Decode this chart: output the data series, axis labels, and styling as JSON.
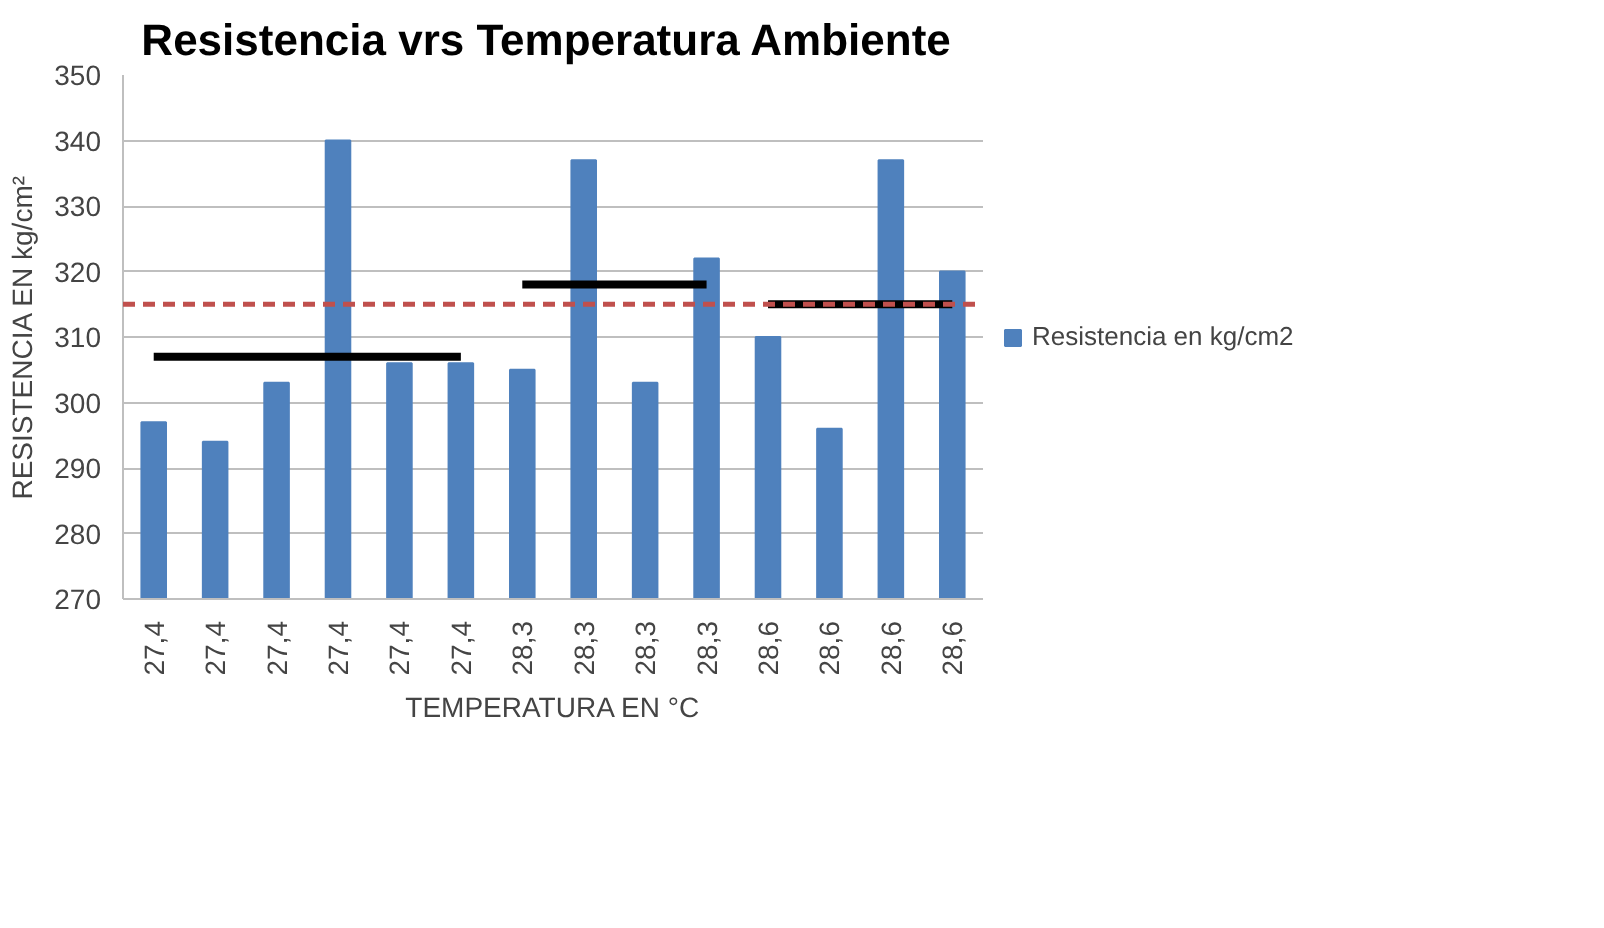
{
  "chart_data": {
    "type": "bar",
    "title": "Resistencia  vrs Temperatura Ambiente",
    "xlabel": "TEMPERATURA EN °C",
    "ylabel": "RESISTENCIA EN kg/cm²",
    "categories": [
      "27,4",
      "27,4",
      "27,4",
      "27,4",
      "27,4",
      "27,4",
      "28,3",
      "28,3",
      "28,3",
      "28,3",
      "28,6",
      "28,6",
      "28,6",
      "28,6"
    ],
    "series": [
      {
        "name": "Resistencia en kg/cm2",
        "color": "#4f81bd",
        "values": [
          297,
          294,
          303,
          340,
          306,
          306,
          305,
          337,
          303,
          322,
          310,
          296,
          337,
          320
        ]
      },
      {
        "type": "line",
        "color": "#000000",
        "values": [
          307,
          307,
          307,
          307,
          307,
          307,
          null,
          null,
          null,
          null,
          null,
          null,
          null,
          null
        ]
      },
      {
        "type": "line",
        "color": "#000000",
        "values": [
          null,
          null,
          null,
          null,
          null,
          null,
          318,
          318,
          318,
          318,
          null,
          null,
          null,
          null
        ]
      },
      {
        "type": "line",
        "color": "#000000",
        "values": [
          null,
          null,
          null,
          null,
          null,
          null,
          null,
          null,
          null,
          null,
          315,
          315,
          315,
          315
        ]
      }
    ],
    "ref_lines": [
      {
        "axis": "y",
        "value": 315,
        "color": "#c0504d",
        "line_style": "dashed"
      }
    ],
    "ylim": [
      270,
      350
    ],
    "yticks": [
      270,
      280,
      290,
      300,
      310,
      320,
      330,
      340,
      350
    ],
    "grid": "y",
    "legend": "right"
  }
}
